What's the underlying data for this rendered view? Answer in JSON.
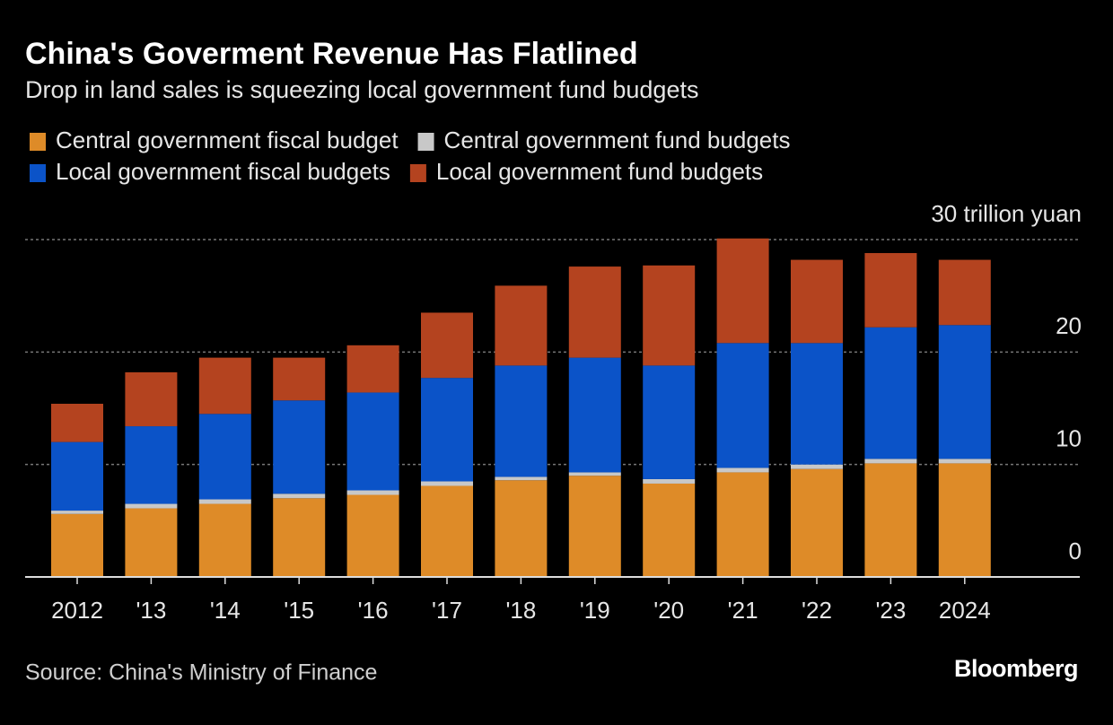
{
  "chart_data": {
    "type": "stacked-bar",
    "title": "China's Goverment Revenue Has Flatlined",
    "subtitle": "Drop in land sales is squeezing local government fund budgets",
    "categories": [
      "2012",
      "'13",
      "'14",
      "'15",
      "'16",
      "'17",
      "'18",
      "'19",
      "'20",
      "'21",
      "'22",
      "'23",
      "2024"
    ],
    "series": [
      {
        "name": "Central government fiscal budget",
        "color": "#de8b28",
        "values": [
          5.6,
          6.1,
          6.5,
          7.0,
          7.3,
          8.1,
          8.6,
          9.0,
          8.3,
          9.3,
          9.6,
          10.1,
          10.1
        ]
      },
      {
        "name": "Central government fund budgets",
        "color": "#c8c8c8",
        "values": [
          0.3,
          0.4,
          0.4,
          0.4,
          0.4,
          0.4,
          0.3,
          0.3,
          0.4,
          0.4,
          0.4,
          0.4,
          0.4
        ]
      },
      {
        "name": "Local government fiscal budgets",
        "color": "#0b53c8",
        "values": [
          6.1,
          6.9,
          7.6,
          8.3,
          8.7,
          9.2,
          9.9,
          10.2,
          10.1,
          11.1,
          10.8,
          11.7,
          11.9
        ]
      },
      {
        "name": "Local government fund budgets",
        "color": "#b4431f",
        "values": [
          3.4,
          4.8,
          5.0,
          3.8,
          4.2,
          5.8,
          7.1,
          8.1,
          8.9,
          9.3,
          7.4,
          6.6,
          5.8
        ]
      }
    ],
    "ylim": [
      0,
      30
    ],
    "yticks": [
      0,
      10,
      20,
      {
        "value": 30,
        "label": "30 trillion yuan"
      }
    ],
    "grid": true,
    "source": "Source: China's Ministry of Finance",
    "logo": "Bloomberg"
  }
}
